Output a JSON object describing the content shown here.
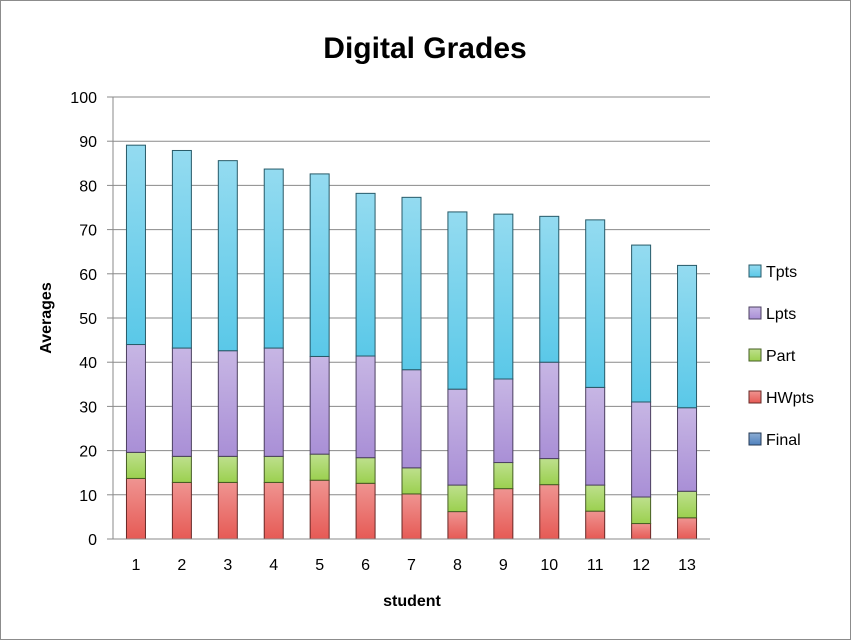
{
  "chart_data": {
    "type": "bar",
    "stacked": true,
    "title": "Digital Grades",
    "xlabel": "student",
    "ylabel": "Averages",
    "categories": [
      "1",
      "2",
      "3",
      "4",
      "5",
      "6",
      "7",
      "8",
      "9",
      "10",
      "11",
      "12",
      "13"
    ],
    "ylim": [
      0,
      100
    ],
    "yticks": [
      0,
      10,
      20,
      30,
      40,
      50,
      60,
      70,
      80,
      90,
      100
    ],
    "grid": true,
    "legend_position": "right",
    "legend_order": [
      "Tpts",
      "Lpts",
      "Part",
      "HWpts",
      "Final"
    ],
    "series": [
      {
        "name": "Final",
        "color": "#4f81bd",
        "values": [
          0,
          0,
          0,
          0,
          0,
          0,
          0,
          0,
          0,
          0,
          0,
          0,
          0
        ]
      },
      {
        "name": "HWpts",
        "color": "#e65a55",
        "values": [
          13.7,
          12.8,
          12.8,
          12.8,
          13.3,
          12.6,
          10.2,
          6.2,
          11.4,
          12.3,
          6.3,
          3.5,
          4.8
        ]
      },
      {
        "name": "Part",
        "color": "#9bd04f",
        "values": [
          5.9,
          5.9,
          5.9,
          5.9,
          5.9,
          5.8,
          5.9,
          6.0,
          5.9,
          5.9,
          5.9,
          6.0,
          6.0
        ]
      },
      {
        "name": "Lpts",
        "color": "#a98fd6",
        "values": [
          24.4,
          24.5,
          23.9,
          24.5,
          22.1,
          23.0,
          22.2,
          21.7,
          18.9,
          21.8,
          22.1,
          21.5,
          18.9
        ]
      },
      {
        "name": "Tpts",
        "color": "#5ac8e8",
        "values": [
          45.1,
          44.7,
          43.0,
          40.5,
          41.3,
          36.8,
          39.0,
          40.1,
          37.3,
          33.0,
          37.9,
          35.5,
          32.2
        ]
      }
    ]
  }
}
